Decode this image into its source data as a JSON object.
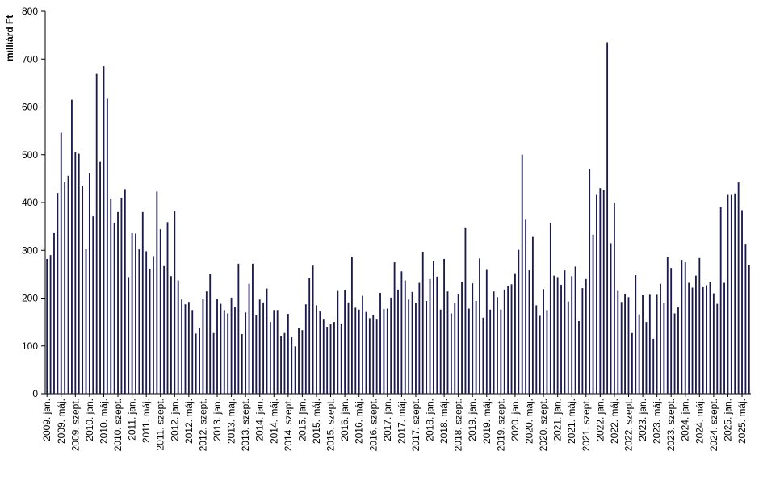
{
  "chart_data": {
    "type": "bar",
    "ylabel": "milliárd Ft",
    "ylim": [
      0,
      800
    ],
    "yticks": [
      0,
      100,
      200,
      300,
      400,
      500,
      600,
      700,
      800
    ],
    "bar_color": "#1a1a4e",
    "grid": false,
    "start": "2009-01",
    "x_tick_labels": [
      "2009. jan.",
      "2009. máj.",
      "2009. szept.",
      "2010. jan.",
      "2010. máj.",
      "2010. szept.",
      "2011. jan.",
      "2011. máj.",
      "2011. szept.",
      "2012. jan.",
      "2012. máj.",
      "2012. szept.",
      "2013. jan.",
      "2013. máj.",
      "2013. szept.",
      "2014. jan.",
      "2014. máj.",
      "2014. szept.",
      "2015. jan.",
      "2015. máj.",
      "2015. szept.",
      "2016. jan.",
      "2016. máj.",
      "2016. szept.",
      "2017. jan.",
      "2017. máj.",
      "2017. szept.",
      "2018. jan.",
      "2018. máj.",
      "2018. szept.",
      "2019. jan.",
      "2019. máj.",
      "2019. szept.",
      "2020. jan.",
      "2020. máj.",
      "2020. szept.",
      "2021. jan.",
      "2021. máj.",
      "2021. szept.",
      "2022. jan.",
      "2022. máj.",
      "2022. szept.",
      "2023. jan.",
      "2023. máj.",
      "2023. szept.",
      "2024. jan.",
      "2024. máj.",
      "2024. szept.",
      "2025. jan.",
      "2025. máj."
    ],
    "values": [
      282,
      290,
      336,
      420,
      546,
      443,
      456,
      615,
      505,
      502,
      435,
      302,
      461,
      371,
      669,
      485,
      685,
      617,
      407,
      358,
      380,
      410,
      428,
      244,
      336,
      335,
      302,
      380,
      298,
      261,
      288,
      423,
      344,
      267,
      359,
      246,
      383,
      237,
      197,
      187,
      192,
      175,
      126,
      137,
      199,
      214,
      250,
      127,
      198,
      188,
      175,
      168,
      201,
      182,
      272,
      125,
      170,
      230,
      272,
      164,
      197,
      191,
      220,
      150,
      175,
      175,
      120,
      127,
      167,
      118,
      99,
      138,
      133,
      187,
      243,
      268,
      185,
      172,
      155,
      140,
      145,
      150,
      215,
      147,
      216,
      191,
      287,
      180,
      176,
      205,
      171,
      158,
      165,
      155,
      211,
      177,
      178,
      201,
      275,
      218,
      256,
      237,
      197,
      213,
      190,
      232,
      297,
      194,
      240,
      277,
      245,
      176,
      282,
      214,
      168,
      190,
      208,
      234,
      348,
      178,
      231,
      194,
      283,
      159,
      259,
      176,
      214,
      202,
      176,
      218,
      226,
      229,
      252,
      301,
      500,
      364,
      258,
      328,
      185,
      163,
      219,
      175,
      357,
      247,
      244,
      228,
      258,
      193,
      246,
      266,
      152,
      221,
      240,
      470,
      333,
      416,
      430,
      426,
      735,
      315,
      400,
      215,
      192,
      208,
      202,
      127,
      248,
      166,
      206,
      150,
      207,
      115,
      207,
      230,
      190,
      286,
      263,
      168,
      181,
      280,
      275,
      232,
      222,
      247,
      284,
      223,
      227,
      233,
      210,
      188,
      390,
      232,
      416,
      416,
      419,
      442,
      384,
      312,
      270
    ]
  }
}
